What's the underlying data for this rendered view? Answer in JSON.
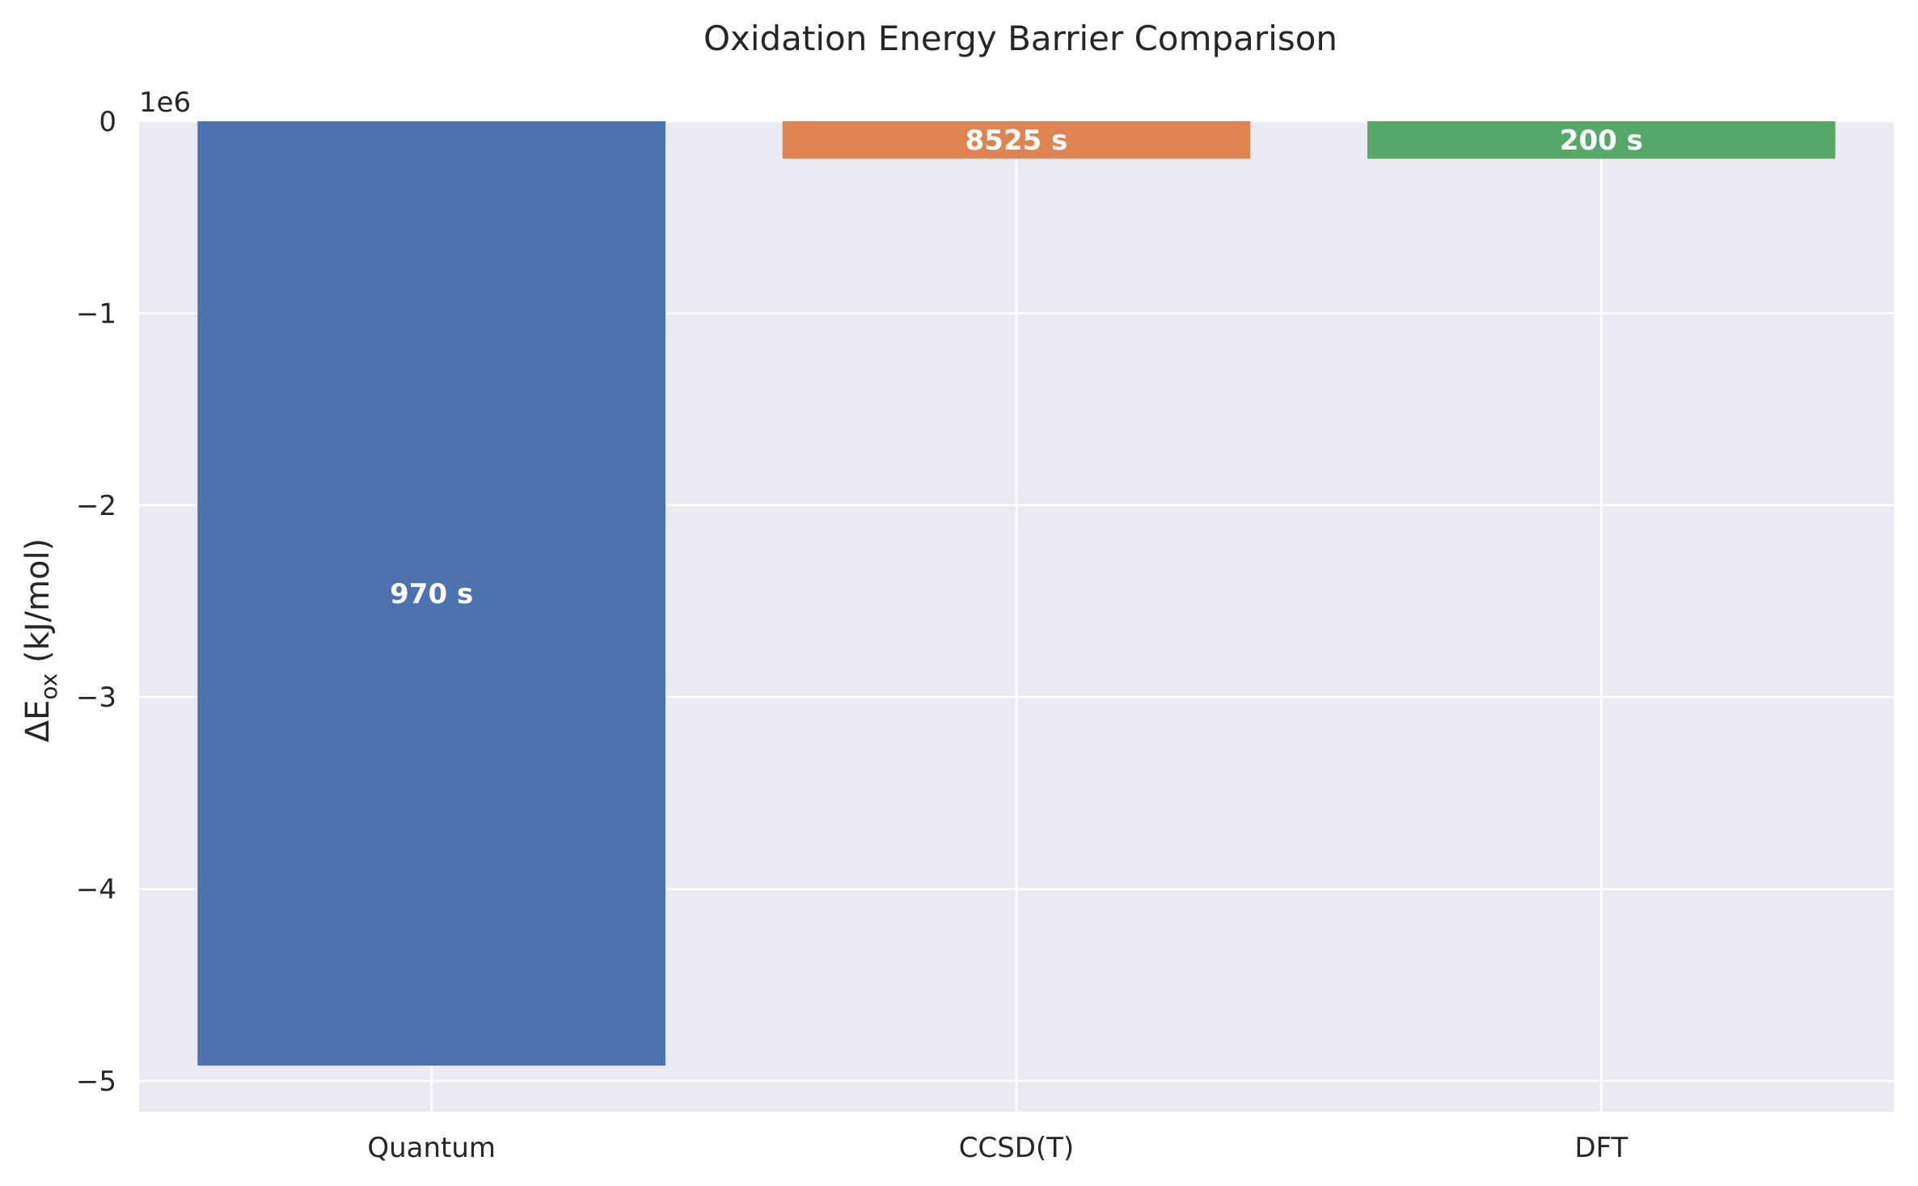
{
  "chart_data": {
    "type": "bar",
    "title": "Oxidation Energy Barrier Comparison",
    "ylabel": "ΔE",
    "ylabel_sub": "ox",
    "ylabel_unit": " (kJ/mol)",
    "xlabel": "",
    "y_offset_label": "1e6",
    "y_scale": 1000000,
    "categories": [
      "Quantum",
      "CCSD(T)",
      "DFT"
    ],
    "values": [
      -4920000,
      -195000,
      -195000
    ],
    "bar_labels": [
      "970 s",
      "8525 s",
      "200 s"
    ],
    "colors": [
      "#4c72b0",
      "#dd8452",
      "#55a868"
    ],
    "ylim": [
      -5160000,
      0
    ],
    "yticks": [
      0,
      -1000000,
      -2000000,
      -3000000,
      -4000000,
      -5000000
    ],
    "ytick_labels": [
      "0",
      "−1",
      "−2",
      "−3",
      "−4",
      "−5"
    ],
    "grid": true,
    "background": "#eaeaf2",
    "grid_color": "#ffffff"
  }
}
